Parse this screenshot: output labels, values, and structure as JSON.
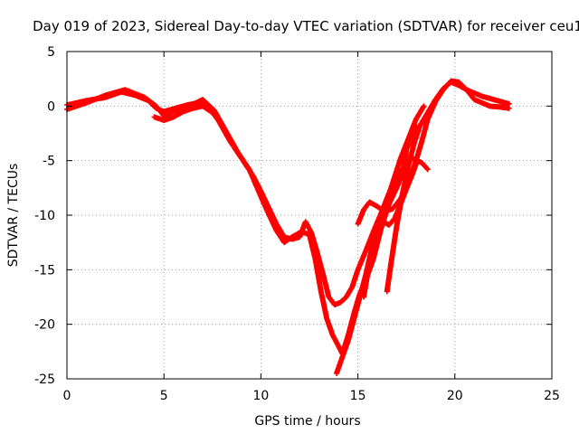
{
  "chart_data": {
    "type": "scatter",
    "title": "Day 019 of 2023, Sidereal Day-to-day VTEC variation (SDTVAR) for receiver ceu1",
    "xlabel": "GPS time / hours",
    "ylabel": "SDTVAR / TECUs",
    "xlim": [
      0,
      25
    ],
    "ylim": [
      -25,
      5
    ],
    "xticks": [
      0,
      5,
      10,
      15,
      20,
      25
    ],
    "xtick_labels": [
      "0",
      "5",
      "10",
      "15",
      "20",
      "25"
    ],
    "yticks": [
      5,
      0,
      -5,
      -10,
      -15,
      -20,
      -25
    ],
    "ytick_labels": [
      "5",
      "0",
      "-5",
      "-10",
      "-15",
      "-20",
      "-25"
    ],
    "grid": true,
    "marker": "plus",
    "series_color": "#ff0000",
    "series": [
      {
        "name": "track-1",
        "points": [
          [
            0.0,
            0.1
          ],
          [
            1.0,
            0.5
          ],
          [
            2.0,
            0.8
          ],
          [
            2.8,
            1.3
          ],
          [
            3.5,
            1.0
          ],
          [
            4.2,
            0.5
          ],
          [
            4.6,
            -0.2
          ],
          [
            5.0,
            -0.5
          ],
          [
            5.6,
            -0.2
          ],
          [
            6.2,
            0.1
          ],
          [
            6.8,
            0.3
          ],
          [
            7.3,
            -0.1
          ],
          [
            7.8,
            -1.3
          ],
          [
            8.4,
            -3.2
          ],
          [
            9.0,
            -4.8
          ],
          [
            9.6,
            -6.4
          ],
          [
            10.0,
            -7.8
          ],
          [
            10.4,
            -9.3
          ],
          [
            10.8,
            -10.8
          ],
          [
            11.2,
            -12.0
          ],
          [
            11.6,
            -12.2
          ],
          [
            12.0,
            -12.0
          ],
          [
            12.3,
            -10.6
          ],
          [
            12.6,
            -11.6
          ],
          [
            12.9,
            -13.4
          ],
          [
            13.2,
            -15.4
          ],
          [
            13.5,
            -17.5
          ],
          [
            13.8,
            -18.2
          ],
          [
            14.1,
            -18.0
          ],
          [
            14.4,
            -17.5
          ],
          [
            14.7,
            -16.6
          ],
          [
            15.0,
            -15.0
          ],
          [
            15.4,
            -13.3
          ],
          [
            15.8,
            -11.5
          ],
          [
            16.2,
            -9.8
          ],
          [
            16.6,
            -8.0
          ],
          [
            17.0,
            -6.5
          ],
          [
            17.4,
            -5.5
          ],
          [
            17.8,
            -4.8
          ],
          [
            18.3,
            -5.2
          ],
          [
            18.6,
            -5.8
          ]
        ]
      },
      {
        "name": "track-2",
        "points": [
          [
            0.0,
            -0.3
          ],
          [
            1.0,
            0.3
          ],
          [
            2.0,
            1.0
          ],
          [
            3.0,
            1.5
          ],
          [
            4.0,
            0.8
          ],
          [
            4.6,
            0.0
          ],
          [
            5.0,
            -0.9
          ],
          [
            5.6,
            -0.4
          ],
          [
            6.3,
            0.0
          ],
          [
            7.0,
            0.6
          ],
          [
            7.6,
            -0.4
          ],
          [
            8.2,
            -2.3
          ],
          [
            8.8,
            -4.2
          ],
          [
            9.4,
            -5.8
          ],
          [
            10.0,
            -8.3
          ],
          [
            10.4,
            -9.9
          ],
          [
            10.8,
            -11.4
          ],
          [
            11.2,
            -12.5
          ],
          [
            11.6,
            -12.0
          ],
          [
            12.1,
            -11.5
          ],
          [
            12.5,
            -11.8
          ],
          [
            12.8,
            -14.0
          ],
          [
            13.1,
            -17.0
          ],
          [
            13.4,
            -19.5
          ],
          [
            13.7,
            -21.0
          ],
          [
            14.0,
            -22.0
          ],
          [
            14.2,
            -22.7
          ],
          [
            14.5,
            -21.0
          ],
          [
            14.8,
            -19.0
          ],
          [
            15.1,
            -17.2
          ],
          [
            15.4,
            -16.0
          ],
          [
            15.8,
            -14.0
          ],
          [
            16.2,
            -11.2
          ],
          [
            16.6,
            -9.0
          ],
          [
            17.0,
            -7.5
          ],
          [
            17.3,
            -6.2
          ],
          [
            17.5,
            -4.0
          ],
          [
            17.8,
            -2.6
          ],
          [
            18.0,
            -1.8
          ]
        ]
      },
      {
        "name": "track-3",
        "points": [
          [
            13.9,
            -24.5
          ],
          [
            14.2,
            -23.0
          ],
          [
            14.5,
            -21.5
          ],
          [
            14.8,
            -19.5
          ],
          [
            15.1,
            -17.5
          ],
          [
            15.4,
            -15.5
          ],
          [
            15.7,
            -13.2
          ],
          [
            16.0,
            -11.5
          ],
          [
            16.4,
            -9.2
          ],
          [
            16.8,
            -7.0
          ],
          [
            17.2,
            -4.8
          ],
          [
            17.6,
            -3.0
          ],
          [
            18.0,
            -1.2
          ],
          [
            18.4,
            0.0
          ]
        ]
      },
      {
        "name": "track-4",
        "points": [
          [
            15.3,
            -17.5
          ],
          [
            15.5,
            -15.4
          ],
          [
            15.8,
            -12.8
          ],
          [
            16.0,
            -11.2
          ],
          [
            16.3,
            -10.6
          ],
          [
            16.6,
            -10.9
          ],
          [
            16.9,
            -10.3
          ],
          [
            17.2,
            -9.0
          ],
          [
            17.5,
            -7.6
          ],
          [
            17.8,
            -6.3
          ],
          [
            18.0,
            -5.3
          ]
        ]
      },
      {
        "name": "track-5",
        "points": [
          [
            16.5,
            -17.0
          ],
          [
            16.7,
            -14.5
          ],
          [
            17.0,
            -11.0
          ],
          [
            17.3,
            -8.0
          ],
          [
            17.6,
            -5.5
          ],
          [
            17.9,
            -3.4
          ],
          [
            18.2,
            -1.8
          ],
          [
            18.6,
            -0.6
          ],
          [
            19.0,
            0.6
          ],
          [
            19.4,
            1.6
          ],
          [
            19.8,
            2.2
          ],
          [
            20.2,
            1.9
          ],
          [
            20.6,
            1.5
          ],
          [
            21.0,
            1.2
          ],
          [
            21.4,
            0.9
          ],
          [
            21.8,
            0.7
          ],
          [
            22.2,
            0.5
          ],
          [
            22.6,
            0.3
          ],
          [
            22.8,
            0.2
          ]
        ]
      },
      {
        "name": "track-6",
        "points": [
          [
            15.0,
            -10.8
          ],
          [
            15.3,
            -9.5
          ],
          [
            15.6,
            -8.8
          ],
          [
            16.0,
            -9.2
          ],
          [
            16.4,
            -9.7
          ],
          [
            16.8,
            -9.4
          ],
          [
            17.2,
            -8.5
          ],
          [
            17.6,
            -7.0
          ],
          [
            18.0,
            -5.0
          ],
          [
            18.3,
            -3.2
          ],
          [
            18.6,
            -1.2
          ],
          [
            19.0,
            0.4
          ],
          [
            19.4,
            1.5
          ],
          [
            19.8,
            2.3
          ],
          [
            20.2,
            2.2
          ],
          [
            20.6,
            1.5
          ],
          [
            21.0,
            0.6
          ],
          [
            21.4,
            0.3
          ],
          [
            21.8,
            0.0
          ],
          [
            22.4,
            -0.1
          ],
          [
            22.8,
            -0.2
          ]
        ]
      },
      {
        "name": "track-7",
        "points": [
          [
            4.5,
            -1.0
          ],
          [
            5.0,
            -1.3
          ],
          [
            5.5,
            -1.0
          ],
          [
            6.0,
            -0.5
          ],
          [
            6.5,
            -0.2
          ],
          [
            7.0,
            0.0
          ],
          [
            7.5,
            -0.6
          ]
        ]
      }
    ]
  }
}
